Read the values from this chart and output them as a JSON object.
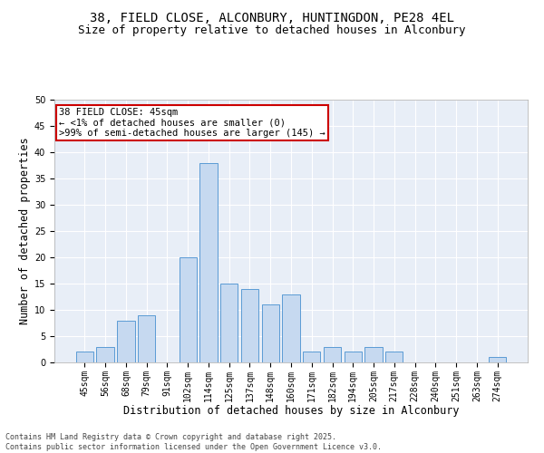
{
  "title_line1": "38, FIELD CLOSE, ALCONBURY, HUNTINGDON, PE28 4EL",
  "title_line2": "Size of property relative to detached houses in Alconbury",
  "xlabel": "Distribution of detached houses by size in Alconbury",
  "ylabel": "Number of detached properties",
  "footnote": "Contains HM Land Registry data © Crown copyright and database right 2025.\nContains public sector information licensed under the Open Government Licence v3.0.",
  "bar_labels": [
    "45sqm",
    "56sqm",
    "68sqm",
    "79sqm",
    "91sqm",
    "102sqm",
    "114sqm",
    "125sqm",
    "137sqm",
    "148sqm",
    "160sqm",
    "171sqm",
    "182sqm",
    "194sqm",
    "205sqm",
    "217sqm",
    "228sqm",
    "240sqm",
    "251sqm",
    "263sqm",
    "274sqm"
  ],
  "bar_values": [
    2,
    3,
    8,
    9,
    0,
    20,
    38,
    15,
    14,
    11,
    13,
    2,
    3,
    2,
    3,
    2,
    0,
    0,
    0,
    0,
    1
  ],
  "bar_color": "#c6d9f0",
  "bar_edge_color": "#5b9bd5",
  "annotation_title": "38 FIELD CLOSE: 45sqm",
  "annotation_line2": "← <1% of detached houses are smaller (0)",
  "annotation_line3": ">99% of semi-detached houses are larger (145) →",
  "annotation_box_color": "#cc0000",
  "ylim": [
    0,
    50
  ],
  "yticks": [
    0,
    5,
    10,
    15,
    20,
    25,
    30,
    35,
    40,
    45,
    50
  ],
  "bg_color": "#e8eef7",
  "grid_color": "#ffffff",
  "title_fontsize": 10,
  "subtitle_fontsize": 9,
  "axis_label_fontsize": 8.5,
  "tick_fontsize": 7,
  "annotation_fontsize": 7.5,
  "footnote_fontsize": 6
}
